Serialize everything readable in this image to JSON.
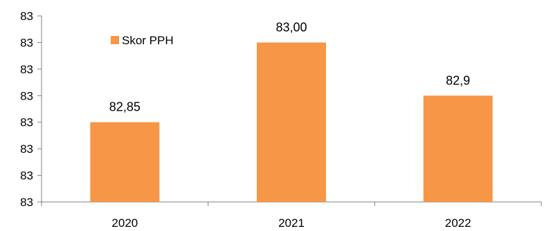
{
  "chart_data": {
    "type": "bar",
    "categories": [
      "2020",
      "2021",
      "2022"
    ],
    "series": [
      {
        "name": "Skor PPH",
        "values": [
          82.85,
          83.0,
          82.9
        ],
        "data_labels": [
          "82,85",
          "83,00",
          "82,9"
        ],
        "color": "#F79646"
      }
    ],
    "y_ticks": [
      {
        "value": 82.7,
        "label": "83"
      },
      {
        "value": 82.75,
        "label": "83"
      },
      {
        "value": 82.8,
        "label": "83"
      },
      {
        "value": 82.85,
        "label": "83"
      },
      {
        "value": 82.9,
        "label": "83"
      },
      {
        "value": 82.95,
        "label": "83"
      },
      {
        "value": 83.0,
        "label": "83"
      },
      {
        "value": 83.05,
        "label": "83"
      }
    ],
    "ylim": [
      82.7,
      83.05
    ],
    "grid": false,
    "legend_position": "top-left",
    "axis_color": "#808080"
  }
}
